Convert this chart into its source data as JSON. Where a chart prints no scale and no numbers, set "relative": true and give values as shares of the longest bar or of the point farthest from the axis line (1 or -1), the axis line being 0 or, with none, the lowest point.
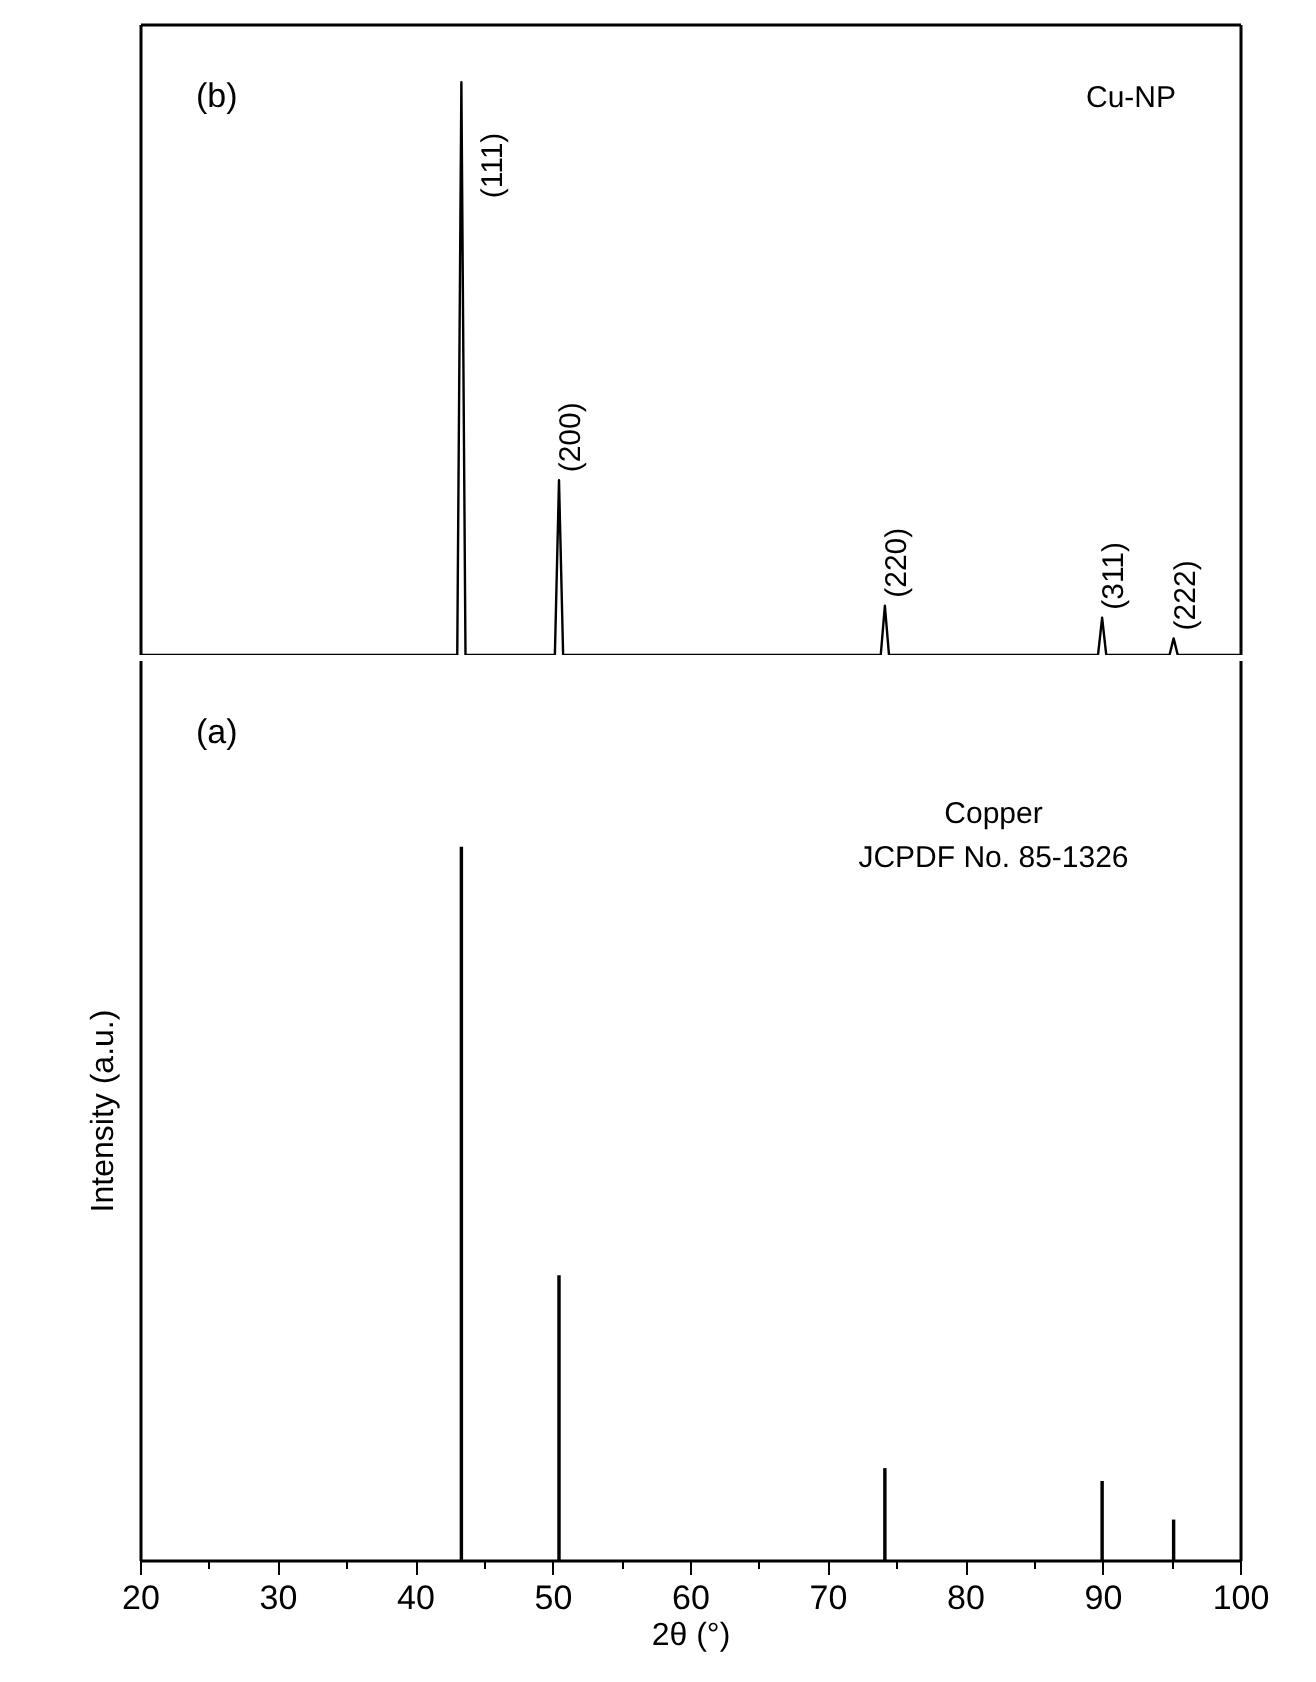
{
  "chart_data": [
    {
      "type": "line",
      "relative": true,
      "xlim": [
        20,
        100
      ],
      "xticks": [
        20,
        30,
        40,
        50,
        60,
        70,
        80,
        90,
        100
      ],
      "tick_labels": false,
      "grid": false,
      "marker": "none",
      "line_style": "solid",
      "series": [
        {
          "color": "#000000",
          "x": [
            20,
            43.0,
            43.3,
            43.6,
            50.1,
            50.4,
            50.7,
            73.8,
            74.1,
            74.4,
            89.6,
            89.9,
            90.2,
            94.8,
            95.1,
            95.4,
            100
          ],
          "values": [
            0,
            0,
            1.0,
            0,
            0,
            0.305,
            0,
            0,
            0.086,
            0,
            0,
            0.065,
            0,
            0,
            0.029,
            0,
            0
          ]
        }
      ],
      "annotations": [
        "(b)",
        "Cu-NP",
        {
          "text": "(111)",
          "x": 43.3,
          "y": 1.0
        },
        {
          "text": "(200)",
          "x": 50.4,
          "y": 0.305
        },
        {
          "text": "(220)",
          "x": 74.1,
          "y": 0.086
        },
        {
          "text": "(311)",
          "x": 89.9,
          "y": 0.065
        },
        {
          "text": "(222)",
          "x": 95.1,
          "y": 0.029
        }
      ]
    },
    {
      "type": "bar",
      "relative": true,
      "xlim": [
        20,
        100
      ],
      "xticks": [
        20,
        30,
        40,
        50,
        60,
        70,
        80,
        90,
        100
      ],
      "xlabel": "2θ (°)",
      "ylabel": "Intensity (a.u.)",
      "grid": false,
      "x": [
        43.3,
        50.4,
        74.1,
        89.9,
        95.1
      ],
      "values": [
        1.0,
        0.4,
        0.13,
        0.112,
        0.058
      ],
      "color": "#000000",
      "annotations": [
        "(a)",
        "Copper",
        "JCPDF No. 85-1326"
      ]
    }
  ]
}
